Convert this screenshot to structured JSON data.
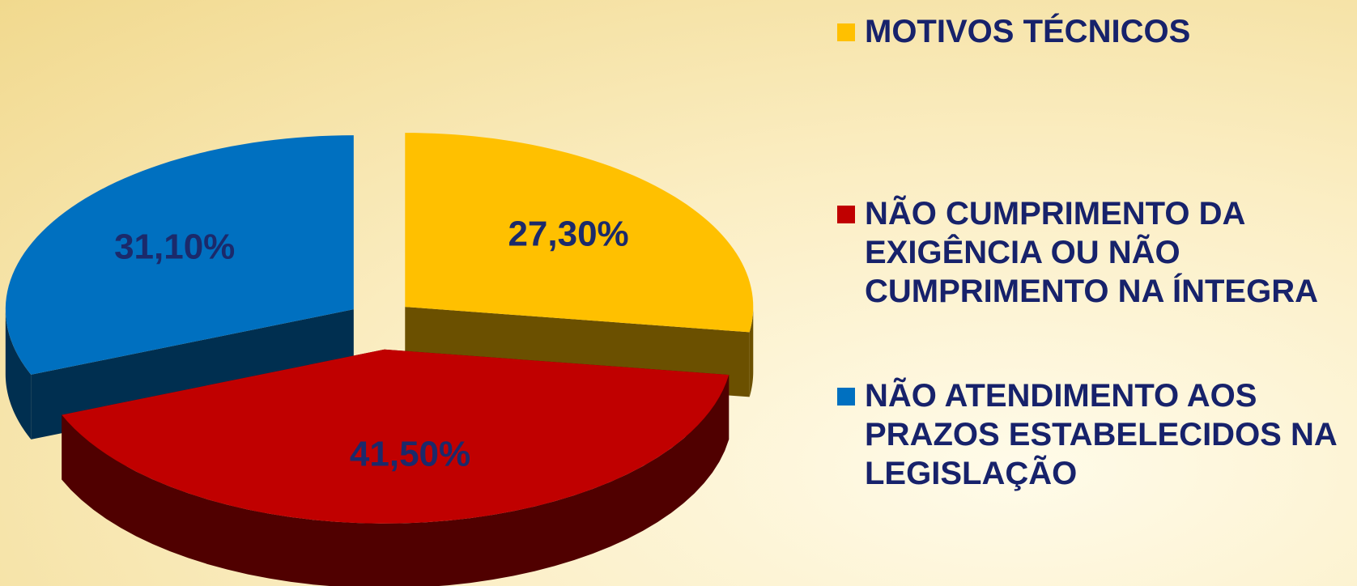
{
  "chart_data": {
    "type": "pie",
    "categories": [
      "MOTIVOS TÉCNICOS",
      "NÃO CUMPRIMENTO DA EXIGÊNCIA OU NÃO CUMPRIMENTO NA ÍNTEGRA",
      "NÃO ATENDIMENTO AOS PRAZOS ESTABELECIDOS NA LEGISLAÇÃO"
    ],
    "values": [
      27.3,
      41.5,
      31.1
    ],
    "value_labels": [
      "27,30%",
      "41,50%",
      "31,10%"
    ],
    "colors": [
      "#ffc000",
      "#c00000",
      "#0070c0"
    ],
    "legend": "right"
  }
}
